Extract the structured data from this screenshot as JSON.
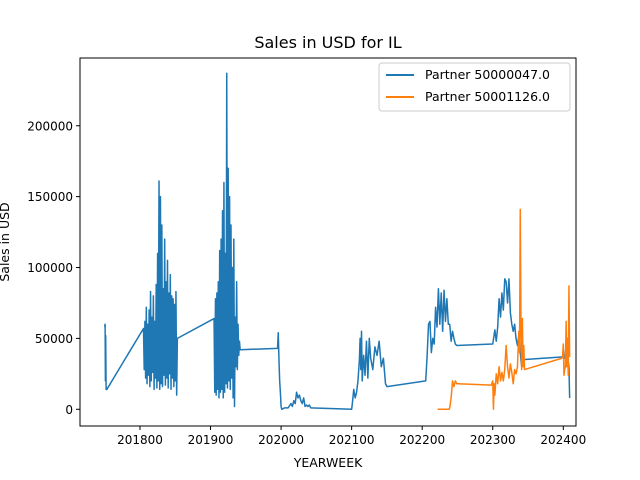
{
  "chart_data": {
    "type": "line",
    "title": "Sales in USD for IL",
    "xlabel": "YEARWEEK",
    "ylabel": "Sales in USD",
    "xlim": [
      201715,
      202418
    ],
    "ylim": [
      -11800,
      247800
    ],
    "xticks": [
      201800,
      201900,
      202000,
      202100,
      202200,
      202300,
      202400
    ],
    "yticks": [
      0,
      50000,
      100000,
      150000,
      200000
    ],
    "grid": false,
    "legend": "top-right",
    "series": [
      {
        "name": "Partner 50000047.0",
        "color": "#1f77b4",
        "points": [
          [
            201750,
            58000
          ],
          [
            201750.6,
            60000
          ],
          [
            201751,
            20000
          ],
          [
            201751.4,
            52000
          ],
          [
            201752,
            14000
          ],
          [
            201752.6,
            15000
          ],
          [
            201753,
            14000
          ],
          [
            201805,
            57000
          ],
          [
            201806,
            28000
          ],
          [
            201807,
            62000
          ],
          [
            201808,
            22000
          ],
          [
            201809,
            72000
          ],
          [
            201810,
            18000
          ],
          [
            201811,
            60000
          ],
          [
            201812,
            24000
          ],
          [
            201813,
            70000
          ],
          [
            201814,
            16000
          ],
          [
            201815,
            83000
          ],
          [
            201816,
            20000
          ],
          [
            201817,
            65000
          ],
          [
            201818,
            26000
          ],
          [
            201819,
            80000
          ],
          [
            201820,
            14000
          ],
          [
            201821,
            62000
          ],
          [
            201822,
            22000
          ],
          [
            201823,
            88000
          ],
          [
            201824,
            15000
          ],
          [
            201825,
            110000
          ],
          [
            201826,
            20000
          ],
          [
            201827,
            161000
          ],
          [
            201828,
            14000
          ],
          [
            201829,
            150000
          ],
          [
            201830,
            18000
          ],
          [
            201831,
            130000
          ],
          [
            201832,
            16000
          ],
          [
            201833,
            85000
          ],
          [
            201834,
            24000
          ],
          [
            201835,
            120000
          ],
          [
            201836,
            17000
          ],
          [
            201837,
            90000
          ],
          [
            201838,
            22000
          ],
          [
            201839,
            105000
          ],
          [
            201840,
            15000
          ],
          [
            201841,
            82000
          ],
          [
            201842,
            25000
          ],
          [
            201843,
            95000
          ],
          [
            201844,
            14000
          ],
          [
            201845,
            80000
          ],
          [
            201846,
            22000
          ],
          [
            201847,
            78000
          ],
          [
            201848,
            16000
          ],
          [
            201849,
            74000
          ],
          [
            201850,
            20000
          ],
          [
            201851,
            83000
          ],
          [
            201852,
            10000
          ],
          [
            201853,
            50000
          ],
          [
            201905,
            64000
          ],
          [
            201906,
            12000
          ],
          [
            201907,
            78000
          ],
          [
            201908,
            10000
          ],
          [
            201909,
            82000
          ],
          [
            201910,
            14000
          ],
          [
            201911,
            90000
          ],
          [
            201912,
            8000
          ],
          [
            201913,
            112000
          ],
          [
            201914,
            12000
          ],
          [
            201915,
            120000
          ],
          [
            201916,
            14000
          ],
          [
            201917,
            140000
          ],
          [
            201918,
            8000
          ],
          [
            201919,
            160000
          ],
          [
            201920,
            12000
          ],
          [
            201921,
            110000
          ],
          [
            201922,
            18000
          ],
          [
            201923,
            237000
          ],
          [
            201924,
            15000
          ],
          [
            201925,
            170000
          ],
          [
            201926,
            20000
          ],
          [
            201927,
            150000
          ],
          [
            201928,
            14000
          ],
          [
            201929,
            130000
          ],
          [
            201930,
            22000
          ],
          [
            201931,
            100000
          ],
          [
            201932,
            8000
          ],
          [
            201933,
            120000
          ],
          [
            201934,
            2000
          ],
          [
            201935,
            65000
          ],
          [
            201936,
            30000
          ],
          [
            201937,
            90000
          ],
          [
            201938,
            28000
          ],
          [
            201939,
            60000
          ],
          [
            201940,
            38000
          ],
          [
            201941,
            48000
          ],
          [
            201942,
            42000
          ],
          [
            201995,
            43000
          ],
          [
            201996,
            54000
          ],
          [
            201997,
            35000
          ],
          [
            201998,
            20000
          ],
          [
            201999,
            12000
          ],
          [
            202000,
            2000
          ],
          [
            202001,
            0
          ],
          [
            202005,
            1000
          ],
          [
            202010,
            1000
          ],
          [
            202014,
            4000
          ],
          [
            202016,
            2000
          ],
          [
            202018,
            6000
          ],
          [
            202020,
            4000
          ],
          [
            202022,
            12000
          ],
          [
            202024,
            8000
          ],
          [
            202026,
            10000
          ],
          [
            202028,
            6000
          ],
          [
            202030,
            4000
          ],
          [
            202032,
            8000
          ],
          [
            202034,
            2000
          ],
          [
            202036,
            3000
          ],
          [
            202038,
            2000
          ],
          [
            202040,
            3000
          ],
          [
            202042,
            1000
          ],
          [
            202100,
            0
          ],
          [
            202101,
            4000
          ],
          [
            202103,
            14000
          ],
          [
            202105,
            8000
          ],
          [
            202107,
            12000
          ],
          [
            202109,
            20000
          ],
          [
            202111,
            35000
          ],
          [
            202112,
            50000
          ],
          [
            202113,
            28000
          ],
          [
            202114,
            55000
          ],
          [
            202115,
            20000
          ],
          [
            202117,
            38000
          ],
          [
            202119,
            24000
          ],
          [
            202121,
            48000
          ],
          [
            202123,
            22000
          ],
          [
            202125,
            50000
          ],
          [
            202127,
            36000
          ],
          [
            202130,
            28000
          ],
          [
            202133,
            44000
          ],
          [
            202136,
            38000
          ],
          [
            202139,
            48000
          ],
          [
            202142,
            30000
          ],
          [
            202145,
            36000
          ],
          [
            202148,
            18000
          ],
          [
            202150,
            16000
          ],
          [
            202205,
            20000
          ],
          [
            202207,
            38000
          ],
          [
            202209,
            60000
          ],
          [
            202211,
            62000
          ],
          [
            202213,
            40000
          ],
          [
            202215,
            50000
          ],
          [
            202217,
            46000
          ],
          [
            202219,
            72000
          ],
          [
            202221,
            58000
          ],
          [
            202223,
            85000
          ],
          [
            202225,
            60000
          ],
          [
            202227,
            82000
          ],
          [
            202229,
            55000
          ],
          [
            202231,
            84000
          ],
          [
            202233,
            62000
          ],
          [
            202235,
            78000
          ],
          [
            202237,
            60000
          ],
          [
            202239,
            60000
          ],
          [
            202241,
            48000
          ],
          [
            202243,
            55000
          ],
          [
            202245,
            50000
          ],
          [
            202247,
            46000
          ],
          [
            202249,
            45000
          ],
          [
            202300,
            46000
          ],
          [
            202303,
            56000
          ],
          [
            202305,
            48000
          ],
          [
            202307,
            58000
          ],
          [
            202309,
            78000
          ],
          [
            202311,
            65000
          ],
          [
            202313,
            82000
          ],
          [
            202315,
            70000
          ],
          [
            202317,
            92000
          ],
          [
            202319,
            90000
          ],
          [
            202321,
            75000
          ],
          [
            202323,
            92000
          ],
          [
            202325,
            68000
          ],
          [
            202327,
            60000
          ],
          [
            202329,
            55000
          ],
          [
            202331,
            60000
          ],
          [
            202333,
            50000
          ],
          [
            202335,
            45000
          ],
          [
            202337,
            52000
          ],
          [
            202339,
            40000
          ],
          [
            202341,
            30000
          ],
          [
            202343,
            35000
          ],
          [
            202400,
            37000
          ],
          [
            202402,
            36000
          ],
          [
            202404,
            45000
          ],
          [
            202406,
            38000
          ],
          [
            202408,
            30000
          ],
          [
            202409,
            8000
          ]
        ]
      },
      {
        "name": "Partner 50001126.0",
        "color": "#ff7f0e",
        "points": [
          [
            202222,
            0
          ],
          [
            202238,
            0
          ],
          [
            202239,
            1000
          ],
          [
            202241,
            8000
          ],
          [
            202243,
            20000
          ],
          [
            202245,
            16000
          ],
          [
            202247,
            20000
          ],
          [
            202249,
            18000
          ],
          [
            202251,
            18000
          ],
          [
            202298,
            17000
          ],
          [
            202300,
            20000
          ],
          [
            202301,
            0
          ],
          [
            202302,
            18000
          ],
          [
            202303,
            10000
          ],
          [
            202305,
            25000
          ],
          [
            202307,
            18000
          ],
          [
            202309,
            30000
          ],
          [
            202311,
            20000
          ],
          [
            202313,
            26000
          ],
          [
            202315,
            20000
          ],
          [
            202317,
            28000
          ],
          [
            202319,
            45000
          ],
          [
            202321,
            30000
          ],
          [
            202323,
            22000
          ],
          [
            202325,
            32000
          ],
          [
            202327,
            26000
          ],
          [
            202329,
            18000
          ],
          [
            202331,
            28000
          ],
          [
            202333,
            25000
          ],
          [
            202335,
            30000
          ],
          [
            202337,
            55000
          ],
          [
            202338,
            40000
          ],
          [
            202339,
            141000
          ],
          [
            202340,
            60000
          ],
          [
            202341,
            28000
          ],
          [
            202342,
            64000
          ],
          [
            202343,
            30000
          ],
          [
            202344,
            45000
          ],
          [
            202345,
            28000
          ],
          [
            202398,
            36000
          ],
          [
            202399,
            38000
          ],
          [
            202400,
            46000
          ],
          [
            202401,
            24000
          ],
          [
            202402,
            28000
          ],
          [
            202403,
            30000
          ],
          [
            202404,
            62000
          ],
          [
            202405,
            30000
          ],
          [
            202406,
            50000
          ],
          [
            202407,
            24000
          ],
          [
            202408,
            87000
          ],
          [
            202409,
            37000
          ]
        ]
      }
    ]
  }
}
